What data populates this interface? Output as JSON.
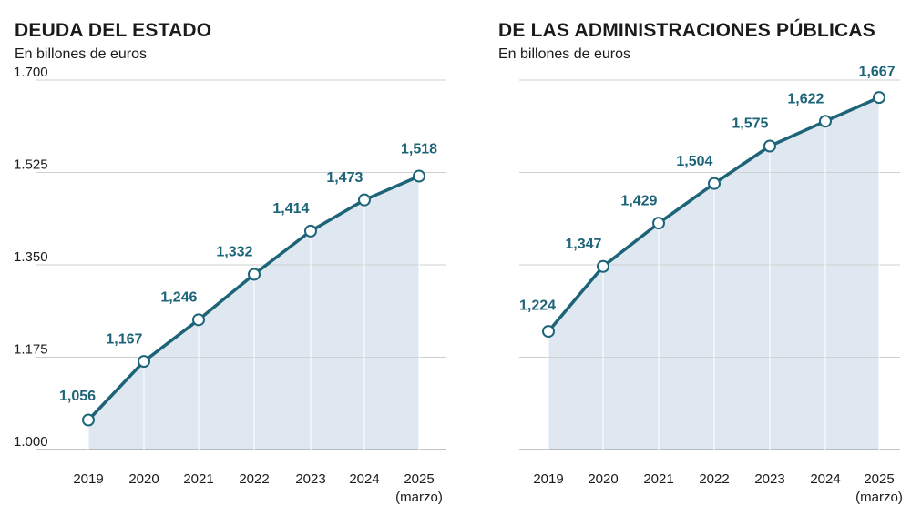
{
  "chart_data": [
    {
      "type": "area",
      "title": "DEUDA DEL ESTADO",
      "subtitle": "En billones de euros",
      "categories": [
        "2019",
        "2020",
        "2021",
        "2022",
        "2023",
        "2024",
        "2025"
      ],
      "category_sublabels": [
        "",
        "",
        "",
        "",
        "",
        "",
        "(marzo)"
      ],
      "values": [
        1.056,
        1.167,
        1.246,
        1.332,
        1.414,
        1.473,
        1.518
      ],
      "value_labels": [
        "1,056",
        "1,167",
        "1,246",
        "1,332",
        "1,414",
        "1,473",
        "1,518"
      ],
      "ylim": [
        1.0,
        1.7
      ],
      "yticks": [
        1.0,
        1.175,
        1.35,
        1.525,
        1.7
      ],
      "ytick_labels": [
        "1.000",
        "1.175",
        "1.350",
        "1.525",
        "1.700"
      ],
      "show_yticks": true,
      "grid": true
    },
    {
      "type": "area",
      "title": "DE LAS ADMINISTRACIONES PÚBLICAS",
      "subtitle": "En billones de euros",
      "categories": [
        "2019",
        "2020",
        "2021",
        "2022",
        "2023",
        "2024",
        "2025"
      ],
      "category_sublabels": [
        "",
        "",
        "",
        "",
        "",
        "",
        "(marzo)"
      ],
      "values": [
        1.224,
        1.347,
        1.429,
        1.504,
        1.575,
        1.622,
        1.667
      ],
      "value_labels": [
        "1,224",
        "1,347",
        "1,429",
        "1,504",
        "1,575",
        "1,622",
        "1,667"
      ],
      "ylim": [
        1.0,
        1.7
      ],
      "yticks": [
        1.0,
        1.175,
        1.35,
        1.525,
        1.7
      ],
      "ytick_labels": [
        "",
        "",
        "",
        "",
        ""
      ],
      "show_yticks": false,
      "grid": true
    }
  ],
  "colors": {
    "line": "#1e6478",
    "area": "#dfe8f1",
    "grid": "#cfcfcf",
    "baseline": "#8a8a8a",
    "label": "#1e6478"
  }
}
